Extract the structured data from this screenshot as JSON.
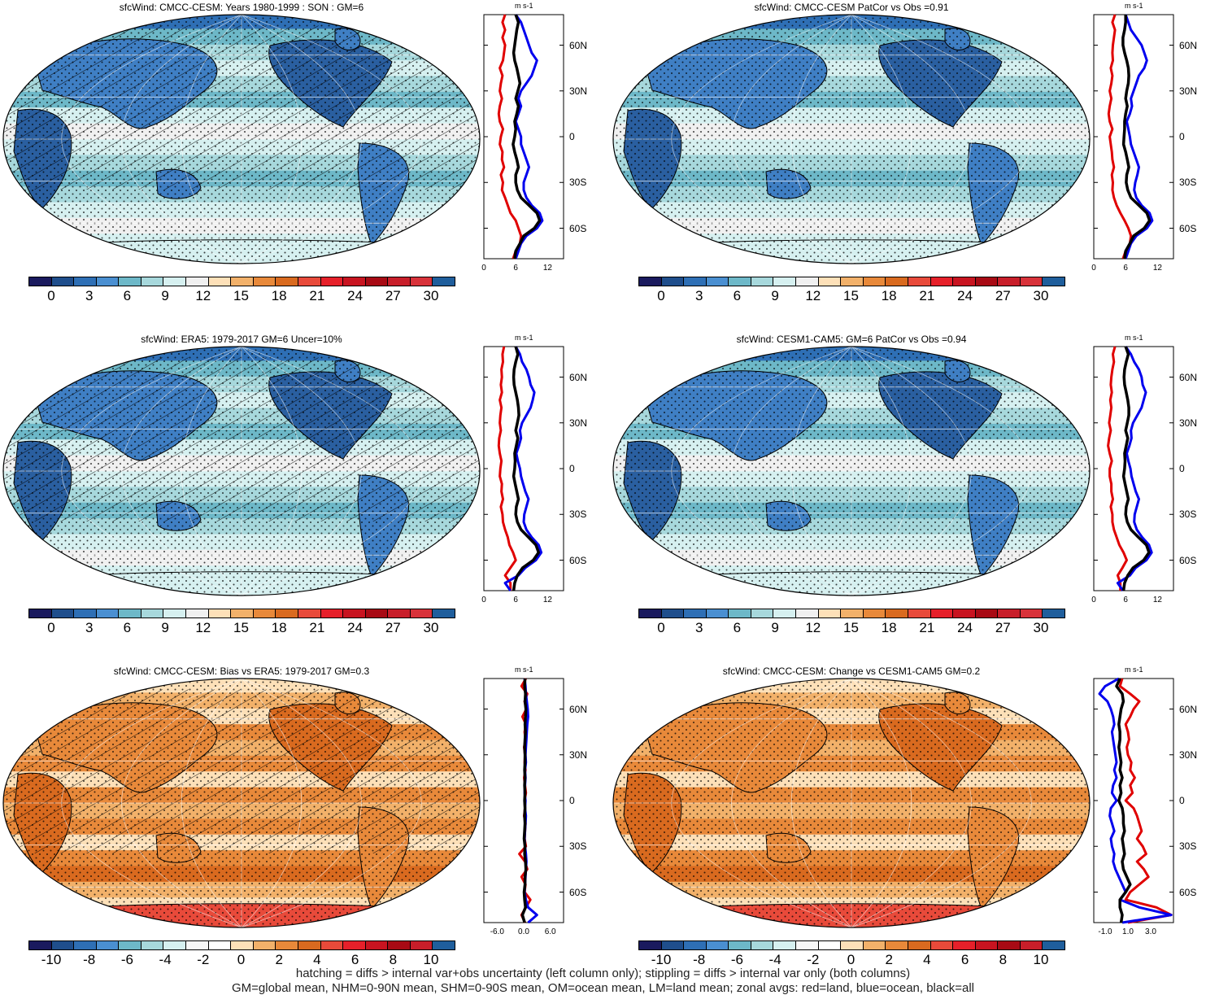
{
  "panels": [
    {
      "id": "p1",
      "title": "sfcWind: CMCC-CESM: Years 1980-1999 : SON : GM=6",
      "palette": "wind",
      "colorbar_ticks": [
        "0",
        "3",
        "6",
        "9",
        "12",
        "15",
        "18",
        "21",
        "24",
        "27",
        "30"
      ],
      "profile_ticks_x": [
        "0",
        "6",
        "12"
      ],
      "profile_x_range": [
        0,
        15
      ],
      "hatched": true
    },
    {
      "id": "p2",
      "title": "sfcWind: CMCC-CESM PatCor vs Obs =0.91",
      "palette": "wind",
      "colorbar_ticks": [
        "0",
        "3",
        "6",
        "9",
        "12",
        "15",
        "18",
        "21",
        "24",
        "27",
        "30"
      ],
      "profile_ticks_x": [
        "0",
        "6",
        "12"
      ],
      "profile_x_range": [
        0,
        15
      ],
      "hatched": false
    },
    {
      "id": "p3",
      "title": "sfcWind: ERA5: 1979-2017 GM=6 Uncer=10%",
      "palette": "wind",
      "colorbar_ticks": [
        "0",
        "3",
        "6",
        "9",
        "12",
        "15",
        "18",
        "21",
        "24",
        "27",
        "30"
      ],
      "profile_ticks_x": [
        "0",
        "6",
        "12"
      ],
      "profile_x_range": [
        0,
        15
      ],
      "hatched": true
    },
    {
      "id": "p4",
      "title": "sfcWind: CESM1-CAM5: GM=6 PatCor vs Obs =0.94",
      "palette": "wind",
      "colorbar_ticks": [
        "0",
        "3",
        "6",
        "9",
        "12",
        "15",
        "18",
        "21",
        "24",
        "27",
        "30"
      ],
      "profile_ticks_x": [
        "0",
        "6",
        "12"
      ],
      "profile_x_range": [
        0,
        15
      ],
      "hatched": false
    },
    {
      "id": "p5",
      "title": "sfcWind: CMCC-CESM: Bias vs ERA5: 1979-2017  GM=0.3",
      "palette": "diff",
      "colorbar_ticks": [
        "-10",
        "-8",
        "-6",
        "-4",
        "-2",
        "0",
        "2",
        "4",
        "6",
        "8",
        "10"
      ],
      "profile_ticks_x": [
        "-6.0",
        "0.0",
        "6.0"
      ],
      "profile_x_range": [
        -9,
        9
      ],
      "hatched": true
    },
    {
      "id": "p6",
      "title": "sfcWind: CMCC-CESM: Change vs CESM1-CAM5 GM=0.2",
      "palette": "diff",
      "colorbar_ticks": [
        "-10",
        "-8",
        "-6",
        "-4",
        "-2",
        "0",
        "2",
        "4",
        "6",
        "8",
        "10"
      ],
      "profile_ticks_x": [
        "-1.0",
        "1.0",
        "3.0"
      ],
      "profile_x_range": [
        -2,
        5
      ],
      "hatched": false
    }
  ],
  "profile_unit": "m s-1",
  "profile_lat_labels": [
    "60N",
    "30N",
    "0",
    "30S",
    "60S"
  ],
  "colors": {
    "wind_palette": [
      "#1a1a5e",
      "#1f4e8c",
      "#2e6fb5",
      "#4a8fd1",
      "#6db8c8",
      "#a7d8dc",
      "#d6f0f0",
      "#f0f0f0",
      "#fde0b8",
      "#f2b16a",
      "#e8893a",
      "#d96a1f",
      "#e84a3a",
      "#e6202a",
      "#c81420",
      "#a80a14",
      "#c81e2a",
      "#d8323a",
      "#1f5e9c"
    ],
    "diff_palette": [
      "#1a1a5e",
      "#1f4e8c",
      "#2e6fb5",
      "#4a8fd1",
      "#6db8c8",
      "#a7d8dc",
      "#d6f0f0",
      "#f7f7f7",
      "#ffffff",
      "#fde0b8",
      "#f2b16a",
      "#e8893a",
      "#d96a1f",
      "#e84a3a",
      "#e6202a",
      "#c81420",
      "#a80a14",
      "#c81e2a",
      "#1f5e9c"
    ],
    "land_line": "#e00000",
    "ocean_line": "#0000ee",
    "all_line": "#000000"
  },
  "profiles": {
    "lat": [
      80,
      75,
      70,
      65,
      60,
      55,
      50,
      45,
      40,
      35,
      30,
      25,
      20,
      15,
      10,
      5,
      0,
      -5,
      -10,
      -15,
      -20,
      -25,
      -30,
      -35,
      -40,
      -45,
      -50,
      -55,
      -60,
      -65,
      -70,
      -75,
      -80
    ],
    "p1": {
      "land": [
        4,
        3.5,
        4,
        3.5,
        4,
        3.8,
        3.6,
        3,
        3.5,
        3.2,
        3,
        3.4,
        3,
        2.8,
        3,
        3.6,
        3.2,
        3,
        3.5,
        3.4,
        3.8,
        3.2,
        3.6,
        3.4,
        4,
        4.5,
        5,
        6,
        6.5,
        7,
        6.8,
        6,
        5.5
      ],
      "ocean": [
        6,
        7,
        7.5,
        8,
        8.5,
        9,
        10,
        9.5,
        9,
        8,
        7,
        6.5,
        7,
        6.5,
        6,
        6.5,
        7,
        7,
        7.5,
        8,
        8.5,
        8,
        7.5,
        7.5,
        8,
        9,
        10.5,
        11,
        10,
        8,
        7,
        6.5,
        6
      ],
      "all": [
        6,
        6.5,
        6.2,
        6,
        5.8,
        5.6,
        5.8,
        6.2,
        6.5,
        6.8,
        6.4,
        6,
        6.5,
        6.2,
        5.8,
        6,
        5.8,
        5.5,
        5.8,
        6.2,
        6.5,
        6,
        6,
        6.3,
        7,
        8.5,
        10,
        10.5,
        9.5,
        7.5,
        6.8,
        6,
        5.8
      ]
    },
    "p2": {
      "land": [
        4,
        3.5,
        4,
        3.8,
        3.6,
        3.5,
        3.6,
        3.2,
        3.5,
        3.3,
        3,
        3.3,
        3,
        2.8,
        3,
        3.5,
        3,
        3.2,
        3.4,
        3.5,
        3.8,
        3.4,
        3.6,
        3.5,
        3.8,
        4.3,
        5,
        5.8,
        6.5,
        7,
        6.8,
        6,
        5.5
      ],
      "ocean": [
        6,
        6.5,
        7,
        8,
        9,
        9.5,
        10,
        9.5,
        8.5,
        8,
        7.5,
        7,
        7.2,
        6.8,
        6.2,
        6.5,
        6.8,
        7,
        7.5,
        8,
        8.5,
        8.2,
        7.8,
        7.6,
        8,
        9,
        10.5,
        11,
        10,
        8,
        7,
        6.5,
        6
      ],
      "all": [
        6,
        6,
        5.8,
        5.5,
        5.5,
        5.8,
        6.2,
        6.5,
        6.6,
        6.5,
        6.2,
        6,
        6.3,
        6,
        5.8,
        5.8,
        5.7,
        5.6,
        6,
        6.3,
        6.6,
        6.2,
        6.1,
        6.4,
        7,
        8.5,
        10,
        10.5,
        9.5,
        7.5,
        6.8,
        6,
        5.8
      ]
    },
    "p3": {
      "land": [
        3.8,
        3.5,
        3.6,
        3.3,
        3.4,
        3.2,
        3.4,
        3,
        3.3,
        3.1,
        3,
        3.2,
        2.9,
        2.8,
        3,
        3.3,
        3.1,
        3,
        3.4,
        3.3,
        3.6,
        3.2,
        3.5,
        3.6,
        4,
        4.5,
        4.8,
        5.5,
        6,
        5,
        4,
        5,
        5
      ],
      "ocean": [
        6,
        6.8,
        7.2,
        8,
        8.5,
        8.8,
        9.5,
        9.2,
        8.8,
        8,
        7.2,
        6.8,
        7,
        6.6,
        6.1,
        6.4,
        6.8,
        7,
        7.4,
        7.8,
        8.4,
        8,
        7.6,
        7.5,
        8,
        9,
        10.3,
        10.8,
        9.8,
        7.8,
        6.5,
        4,
        5
      ],
      "all": [
        6,
        6.4,
        6,
        5.7,
        5.6,
        5.7,
        6,
        6.3,
        6.5,
        6.6,
        6.3,
        6,
        6.4,
        6.1,
        5.8,
        5.9,
        5.8,
        5.6,
        5.9,
        6.2,
        6.5,
        6.1,
        6,
        6.3,
        7,
        8.4,
        9.8,
        10.3,
        9.3,
        7.3,
        6.3,
        5.8,
        5.6
      ]
    },
    "p4": {
      "land": [
        4,
        3.6,
        3.8,
        3.5,
        3.3,
        3.2,
        3.4,
        3.1,
        3.3,
        3.1,
        2.9,
        3.2,
        2.9,
        2.7,
        3,
        3.4,
        3,
        3,
        3.3,
        3.3,
        3.6,
        3.2,
        3.5,
        3.5,
        3.8,
        4.3,
        4.8,
        5.6,
        6.2,
        5.4,
        4.5,
        5,
        5
      ],
      "ocean": [
        6,
        7,
        7.6,
        8.5,
        9,
        9.2,
        9.8,
        9.4,
        9,
        8.2,
        7.4,
        7,
        7.1,
        6.7,
        6.2,
        6.5,
        6.9,
        7.1,
        7.5,
        7.9,
        8.5,
        8.1,
        7.7,
        7.6,
        8.1,
        9.1,
        10.4,
        10.9,
        9.9,
        7.9,
        6.8,
        4.5,
        5.5
      ],
      "all": [
        6,
        6.5,
        6.1,
        5.8,
        5.7,
        5.8,
        6.1,
        6.4,
        6.6,
        6.6,
        6.3,
        6,
        6.4,
        6.1,
        5.8,
        5.9,
        5.8,
        5.6,
        5.9,
        6.2,
        6.5,
        6.1,
        6,
        6.3,
        7,
        8.4,
        9.9,
        10.4,
        9.4,
        7.4,
        6.4,
        5.8,
        5.6
      ]
    },
    "p5": {
      "land": [
        0.5,
        -0.5,
        0.8,
        0.2,
        0.6,
        -0.3,
        0.5,
        0.2,
        0.4,
        0.1,
        0.3,
        0.2,
        0.4,
        0.1,
        0.3,
        0.5,
        0.2,
        0.3,
        0.1,
        0.4,
        0.3,
        0.2,
        0.5,
        -1,
        0.3,
        0.8,
        -0.5,
        0.4,
        0.2,
        1.5,
        0.5,
        -0.5,
        0.3
      ],
      "ocean": [
        0.2,
        0.4,
        0.5,
        0.7,
        0.9,
        1,
        0.8,
        0.7,
        0.6,
        0.5,
        0.4,
        0.5,
        0.3,
        0.4,
        0.3,
        0.2,
        0.4,
        0.3,
        0.5,
        0.4,
        0.3,
        0.2,
        0.3,
        0.5,
        0.6,
        0.5,
        0.4,
        0.3,
        0.2,
        0.5,
        1,
        3,
        1
      ],
      "all": [
        0.3,
        0.2,
        0.4,
        0.3,
        0.5,
        0.4,
        0.3,
        0.4,
        0.3,
        0.2,
        0.3,
        0.3,
        0.2,
        0.3,
        0.2,
        0.3,
        0.2,
        0.3,
        0.2,
        0.3,
        0.2,
        0.1,
        0.3,
        0.2,
        0.4,
        0.5,
        0.3,
        0.3,
        0.1,
        0.2,
        0.4,
        -0.3,
        0.2
      ]
    },
    "p6": {
      "land": [
        0.5,
        0.3,
        1.2,
        2,
        1.5,
        1.2,
        0.8,
        1,
        1.1,
        0.9,
        1,
        1.3,
        1.2,
        1.6,
        1.2,
        1.4,
        0.8,
        1.5,
        1.8,
        2,
        2.2,
        1.8,
        2.3,
        2.6,
        1.8,
        2.4,
        2.8,
        2,
        1.2,
        0.8,
        3.5,
        4.8,
        1
      ],
      "ocean": [
        0.2,
        -1,
        -1.5,
        -0.8,
        -0.5,
        -0.3,
        -0.2,
        -0.4,
        -0.3,
        -0.2,
        -0.1,
        0,
        -0.2,
        0,
        -0.3,
        -0.4,
        0,
        -0.5,
        -0.6,
        -0.4,
        -0.2,
        -0.5,
        -0.4,
        -0.2,
        -0.3,
        -0.1,
        0.2,
        0.5,
        0.8,
        0.3,
        2,
        4.8,
        0.5
      ],
      "all": [
        0.3,
        0,
        0.5,
        0.6,
        0.4,
        0.3,
        0.2,
        0.3,
        0.3,
        0.2,
        0.3,
        0.4,
        0.3,
        0.5,
        0.3,
        0.4,
        0.2,
        0.5,
        0.6,
        0.6,
        0.7,
        0.5,
        0.6,
        0.7,
        0.5,
        0.6,
        0.9,
        1.2,
        0.8,
        0.3,
        0.3,
        0.5,
        0.4
      ]
    }
  },
  "footer": {
    "line1": "hatching = diffs > internal var+obs uncertainty (left column only); stippling = diffs > internal var only (both columns)",
    "line2": "GM=global mean, NHM=0-90N mean, SHM=0-90S mean, OM=ocean mean, LM=land mean; zonal avgs: red=land, blue=ocean, black=all"
  }
}
